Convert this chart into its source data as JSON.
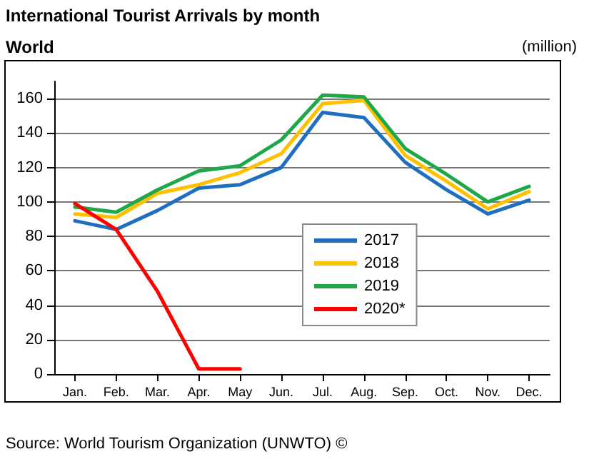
{
  "chart_data": {
    "type": "line",
    "title": "International Tourist Arrivals by month",
    "subtitle": "World",
    "ylabel": "(million)",
    "categories": [
      "Jan.",
      "Feb.",
      "Mar.",
      "Apr.",
      "May",
      "Jun.",
      "Jul.",
      "Aug.",
      "Sep.",
      "Oct.",
      "Nov.",
      "Dec."
    ],
    "series": [
      {
        "name": "2017",
        "color": "#1f6fc0",
        "values": [
          89,
          84,
          95,
          108,
          110,
          120,
          152,
          149,
          123,
          107,
          93,
          101
        ]
      },
      {
        "name": "2018",
        "color": "#ffc000",
        "values": [
          93,
          91,
          105,
          110,
          117,
          128,
          157,
          159,
          127,
          112,
          96,
          106
        ]
      },
      {
        "name": "2019",
        "color": "#1fa84a",
        "values": [
          97,
          94,
          107,
          118,
          121,
          136,
          162,
          161,
          131,
          116,
          100,
          109
        ]
      },
      {
        "name": "2020*",
        "color": "#ff0000",
        "values": [
          99,
          84,
          48,
          3,
          3,
          null,
          null,
          null,
          null,
          null,
          null,
          null
        ]
      }
    ],
    "ylim": [
      0,
      170
    ],
    "yticks": [
      0,
      20,
      40,
      60,
      80,
      100,
      120,
      140,
      160
    ],
    "grid": "y",
    "legend": "center right",
    "marker": "none",
    "line_style": "solid",
    "annotations": [
      "Source: World Tourism Organization (UNWTO) ©"
    ]
  }
}
